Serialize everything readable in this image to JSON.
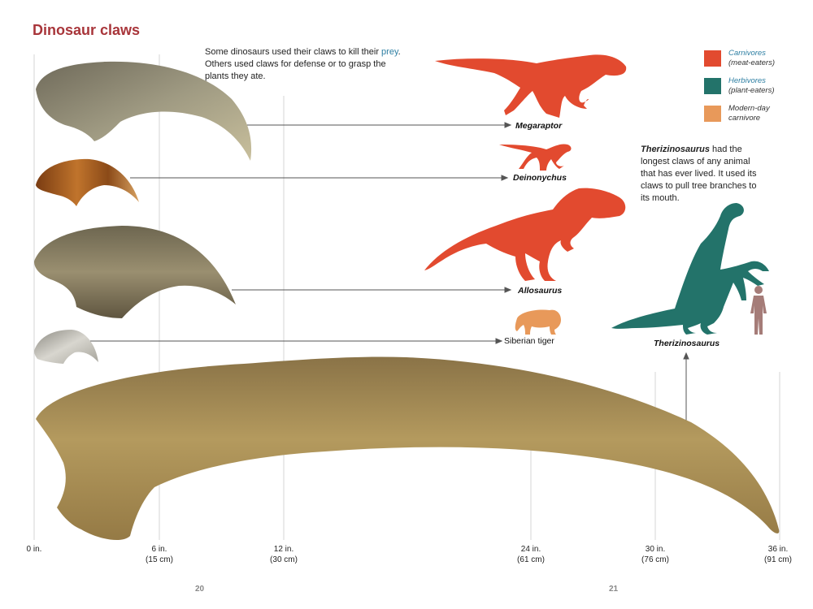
{
  "title": "Dinosaur claws",
  "intro": {
    "before": "Some dinosaurs used their claws to kill their ",
    "highlight": "prey",
    "after": ". Others used claws for defense or to grasp the plants they ate."
  },
  "legend": [
    {
      "label": "Carnivores",
      "sub": "(meat-eaters)",
      "color": "#e24a2f",
      "label_color": "#2e7fa3"
    },
    {
      "label": "Herbivores",
      "sub": "(plant-eaters)",
      "color": "#23736a",
      "label_color": "#2e7fa3"
    },
    {
      "label": "Modern-day carnivore",
      "sub": "",
      "color": "#e8995a",
      "label_color": "#333333"
    }
  ],
  "creatures": {
    "megaraptor": "Megaraptor",
    "deinonychus": "Deinonychus",
    "allosaurus": "Allosaurus",
    "tiger": "Siberian tiger",
    "therizinosaurus": "Therizinosaurus"
  },
  "therizino_note": {
    "name": "Therizinosaurus",
    "text": " had the longest claws of any animal that has ever lived. It used its claws to pull tree branches to its mouth."
  },
  "scale": [
    {
      "in": "0 in.",
      "cm": ""
    },
    {
      "in": "6 in.",
      "cm": "(15 cm)"
    },
    {
      "in": "12 in.",
      "cm": "(30 cm)"
    },
    {
      "in": "24 in.",
      "cm": "(61 cm)"
    },
    {
      "in": "30 in.",
      "cm": "(76 cm)"
    },
    {
      "in": "36 in.",
      "cm": "(91 cm)"
    }
  ],
  "pages": {
    "left": "20",
    "right": "21"
  }
}
